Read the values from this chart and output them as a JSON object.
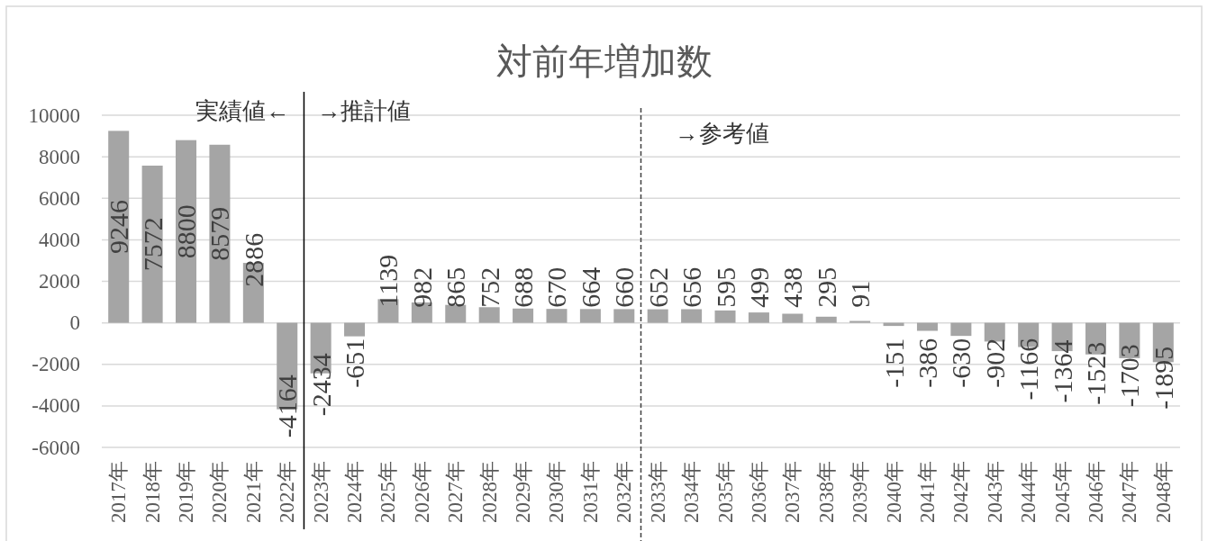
{
  "chart_data": {
    "type": "bar",
    "title": "対前年増加数",
    "x": [
      2017,
      2018,
      2019,
      2020,
      2021,
      2022,
      2023,
      2024,
      2025,
      2026,
      2027,
      2028,
      2029,
      2030,
      2031,
      2032,
      2033,
      2034,
      2035,
      2036,
      2037,
      2038,
      2039,
      2040,
      2041,
      2042,
      2043,
      2044,
      2045,
      2046,
      2047,
      2048
    ],
    "values": [
      9246,
      7572,
      8800,
      8579,
      2886,
      -4164,
      -2434,
      -651,
      1139,
      982,
      865,
      752,
      688,
      670,
      664,
      660,
      652,
      656,
      595,
      499,
      438,
      295,
      91,
      -151,
      -386,
      -630,
      -902,
      -1166,
      -1364,
      -1523,
      -1703,
      -1895
    ],
    "color": "#a5a5a5",
    "data_labels": true,
    "grid": "y",
    "xlim": [
      2016.5,
      2048.5
    ],
    "xticks": [
      {
        "value": 2017,
        "label": "2017年"
      },
      {
        "value": 2018,
        "label": "2018年"
      },
      {
        "value": 2019,
        "label": "2019年"
      },
      {
        "value": 2020,
        "label": "2020年"
      },
      {
        "value": 2021,
        "label": "2021年"
      },
      {
        "value": 2022,
        "label": "2022年"
      },
      {
        "value": 2023,
        "label": "2023年"
      },
      {
        "value": 2024,
        "label": "2024年"
      },
      {
        "value": 2025,
        "label": "2025年"
      },
      {
        "value": 2026,
        "label": "2026年"
      },
      {
        "value": 2027,
        "label": "2027年"
      },
      {
        "value": 2028,
        "label": "2028年"
      },
      {
        "value": 2029,
        "label": "2029年"
      },
      {
        "value": 2030,
        "label": "2030年"
      },
      {
        "value": 2031,
        "label": "2031年"
      },
      {
        "value": 2032,
        "label": "2032年"
      },
      {
        "value": 2033,
        "label": "2033年"
      },
      {
        "value": 2034,
        "label": "2034年"
      },
      {
        "value": 2035,
        "label": "2035年"
      },
      {
        "value": 2036,
        "label": "2036年"
      },
      {
        "value": 2037,
        "label": "2037年"
      },
      {
        "value": 2038,
        "label": "2038年"
      },
      {
        "value": 2039,
        "label": "2039年"
      },
      {
        "value": 2040,
        "label": "2040年"
      },
      {
        "value": 2041,
        "label": "2041年"
      },
      {
        "value": 2042,
        "label": "2042年"
      },
      {
        "value": 2043,
        "label": "2043年"
      },
      {
        "value": 2044,
        "label": "2044年"
      },
      {
        "value": 2045,
        "label": "2045年"
      },
      {
        "value": 2046,
        "label": "2046年"
      },
      {
        "value": 2047,
        "label": "2047年"
      },
      {
        "value": 2048,
        "label": "2048年"
      }
    ],
    "ylim": [
      -6000,
      10000
    ],
    "yticks": [
      -6000,
      -4000,
      -2000,
      0,
      2000,
      4000,
      6000,
      8000,
      10000
    ],
    "ref_lines": [
      {
        "axis": "x",
        "value": 2022.5,
        "label": "→推計値",
        "color": "#000000",
        "line_style": "solid"
      },
      {
        "axis": "x",
        "value": 2032.5,
        "label": "→参考値",
        "color": "#404040",
        "line_style": "dashed"
      }
    ],
    "annotations": [
      "実績値←"
    ]
  }
}
